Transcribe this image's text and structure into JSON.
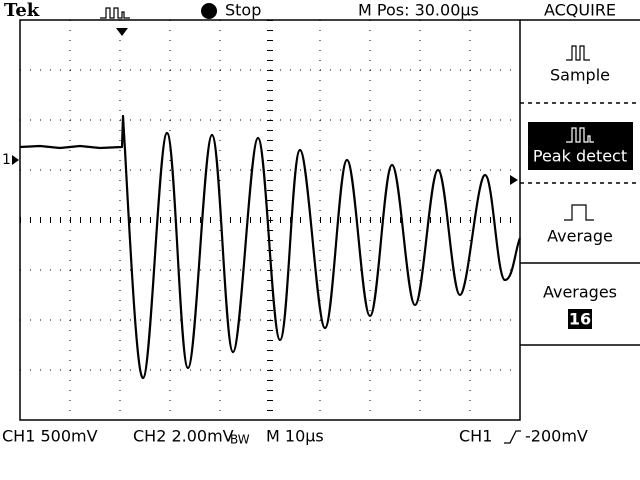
{
  "header": {
    "brand": "Tek",
    "status": "Stop",
    "position": "M Pos: 30.00µs"
  },
  "menu": {
    "title": "ACQUIRE",
    "items": [
      "Sample",
      "Peak detect",
      "Average"
    ],
    "averages_label": "Averages",
    "averages_value": "16"
  },
  "display": {
    "channel_marker": "1"
  },
  "footer": {
    "ch1": "CH1 500mV",
    "ch2": "CH2 2.00mV",
    "bw": "BW",
    "timebase": "M 10µs",
    "trigger_source": "CH1",
    "trigger_level": "-200mV"
  }
}
